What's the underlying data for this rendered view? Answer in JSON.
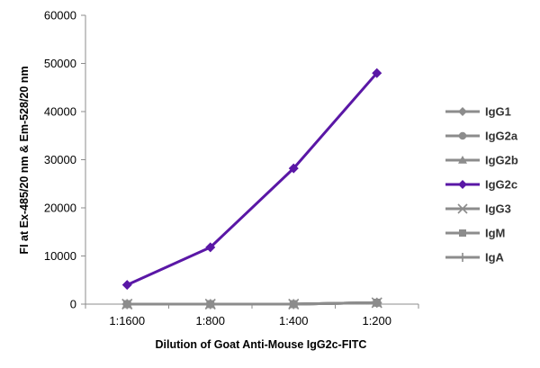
{
  "chart_data": {
    "type": "line",
    "title": "",
    "xlabel": "Dilution of Goat Anti-Mouse IgG2c-FITC",
    "ylabel": "FI at Ex-485/20 nm & Em-528/20 nm",
    "categories": [
      "1:1600",
      "1:800",
      "1:400",
      "1:200"
    ],
    "ylim": [
      0,
      60000
    ],
    "yticks": [
      0,
      10000,
      20000,
      30000,
      40000,
      50000,
      60000
    ],
    "grid": false,
    "legend_position": "right",
    "series": [
      {
        "name": "IgG1",
        "values": [
          0,
          0,
          0,
          300
        ],
        "color": "#8c8c8c",
        "marker": "diamond"
      },
      {
        "name": "IgG2a",
        "values": [
          0,
          0,
          0,
          300
        ],
        "color": "#8c8c8c",
        "marker": "circle"
      },
      {
        "name": "IgG2b",
        "values": [
          0,
          0,
          0,
          300
        ],
        "color": "#8c8c8c",
        "marker": "triangle"
      },
      {
        "name": "IgG2c",
        "values": [
          4000,
          11800,
          28200,
          48000
        ],
        "color": "#5a17a6",
        "marker": "diamond"
      },
      {
        "name": "IgG3",
        "values": [
          0,
          0,
          0,
          300
        ],
        "color": "#8c8c8c",
        "marker": "x"
      },
      {
        "name": "IgM",
        "values": [
          0,
          0,
          0,
          300
        ],
        "color": "#8c8c8c",
        "marker": "square"
      },
      {
        "name": "IgA",
        "values": [
          0,
          0,
          0,
          300
        ],
        "color": "#8c8c8c",
        "marker": "plus"
      }
    ]
  }
}
